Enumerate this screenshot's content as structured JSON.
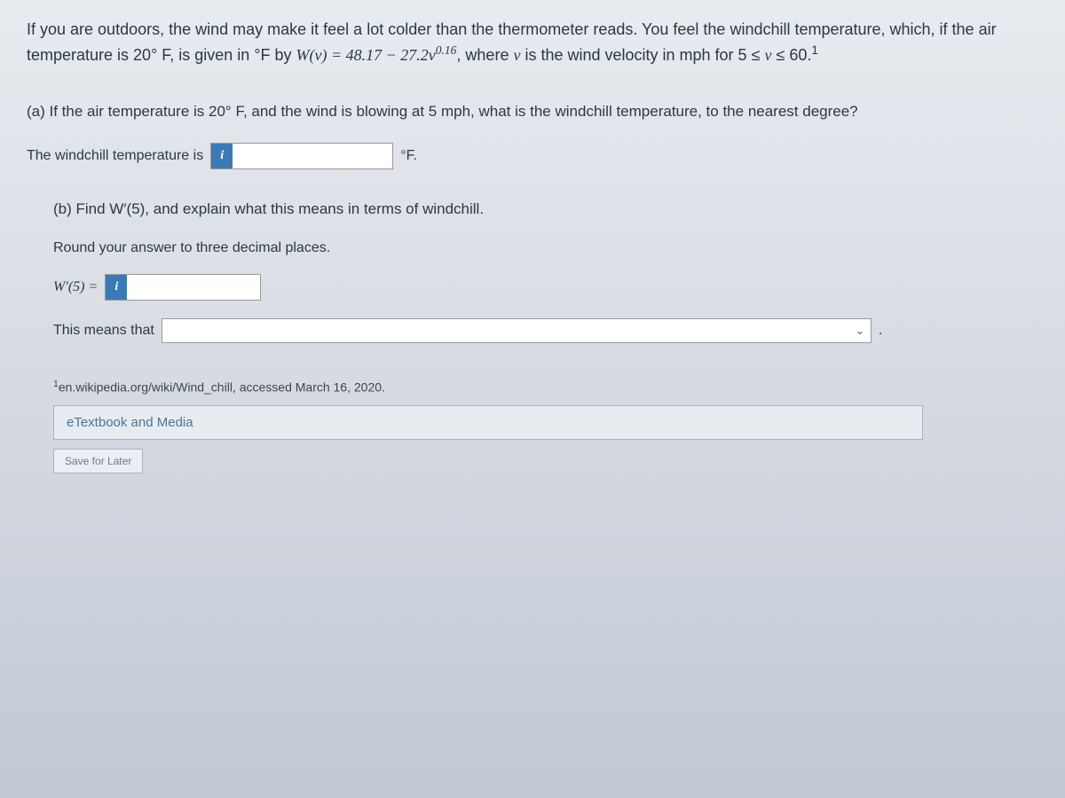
{
  "intro": {
    "part1": "If you are outdoors, the wind may make it feel a lot colder than the thermometer reads. You feel the windchill temperature, which, if the air temperature is 20° F, is given in °F by ",
    "formula_lhs": "W(v) = 48.17 − 27.2v",
    "formula_exp": "0.16",
    "part2": ", where ",
    "var_v": "v",
    "part3": " is the wind velocity in mph for 5 ≤ ",
    "var_v2": "v",
    "part4": " ≤ 60.",
    "footnote_marker": "1"
  },
  "part_a": {
    "question": "(a) If the air temperature is 20° F, and the wind is blowing at 5 mph, what is the windchill temperature, to the nearest degree?",
    "label": "The windchill temperature is",
    "unit": "°F."
  },
  "part_b": {
    "question": "(b) Find W′(5), and explain what this means in terms of windchill.",
    "instruction": "Round your answer to three decimal places.",
    "deriv_label": "W′(5) =",
    "means_label": "This means that",
    "select_placeholder": "",
    "select_period": "."
  },
  "footnote": {
    "text": "en.wikipedia.org/wiki/Wind_chill, accessed March 16, 2020.",
    "marker": "1"
  },
  "buttons": {
    "etextbook": "eTextbook and Media",
    "save": "Save for Later"
  },
  "info_icon_char": "i"
}
